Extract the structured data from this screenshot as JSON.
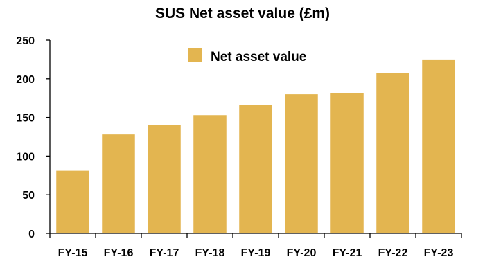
{
  "chart_data": {
    "type": "bar",
    "title": "SUS Net asset value (£m)",
    "categories": [
      "FY-15",
      "FY-16",
      "FY-17",
      "FY-18",
      "FY-19",
      "FY-20",
      "FY-21",
      "FY-22",
      "FY-23"
    ],
    "series": [
      {
        "name": "Net asset value",
        "values": [
          81,
          128,
          140,
          153,
          166,
          180,
          181,
          207,
          225
        ]
      }
    ],
    "ylim": [
      0,
      250
    ],
    "yticks": [
      0,
      50,
      100,
      150,
      200,
      250
    ],
    "xlabel": "",
    "ylabel": "",
    "grid": false,
    "legend_position": "top-center",
    "bar_color": "#E3B550"
  }
}
